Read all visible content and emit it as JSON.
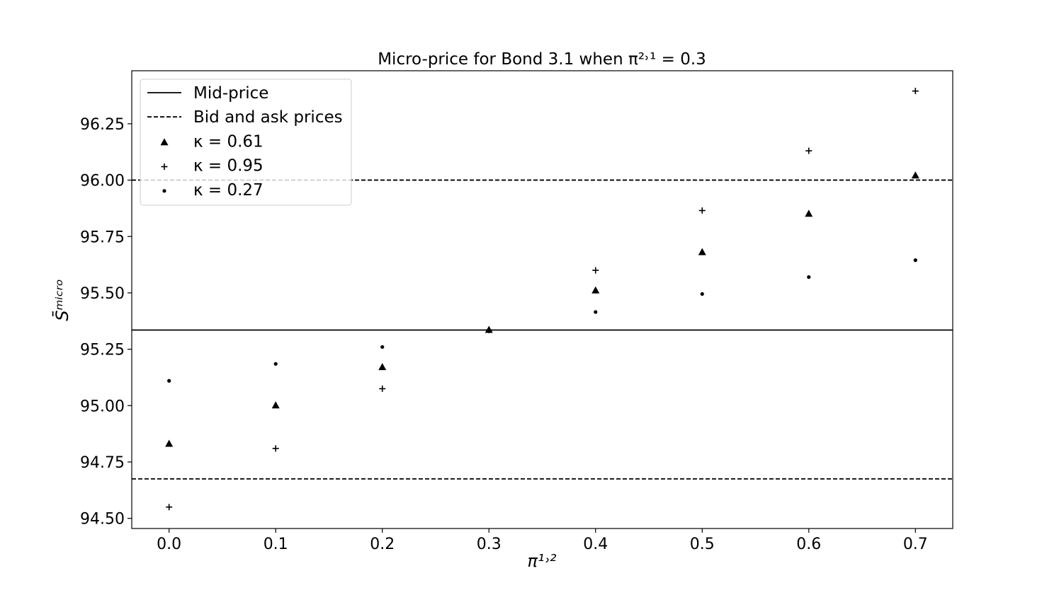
{
  "chart_data": {
    "type": "scatter",
    "title": "Micro-price for Bond 3.1 when π²˒¹ = 0.3",
    "xlabel": "π¹˒²",
    "ylabel": "S̄ᵐⁱᶜʳᵒ",
    "xlim": [
      -0.035,
      0.735
    ],
    "ylim": [
      94.455,
      96.485
    ],
    "x_ticks": [
      0.0,
      0.1,
      0.2,
      0.3,
      0.4,
      0.5,
      0.6,
      0.7
    ],
    "x_tick_labels": [
      "0.0",
      "0.1",
      "0.2",
      "0.3",
      "0.4",
      "0.5",
      "0.6",
      "0.7"
    ],
    "y_ticks": [
      94.5,
      94.75,
      95.0,
      95.25,
      95.5,
      95.75,
      96.0,
      96.25
    ],
    "y_tick_labels": [
      "94.50",
      "94.75",
      "95.00",
      "95.25",
      "95.50",
      "95.75",
      "96.00",
      "96.25"
    ],
    "grid": false,
    "legend_position": "top-left",
    "hlines": [
      {
        "name": "Mid-price",
        "y": 95.335,
        "style": "solid"
      },
      {
        "name": "Bid and ask prices",
        "y": 96.0,
        "style": "dashed"
      },
      {
        "name": "Bid and ask prices",
        "y": 94.675,
        "style": "dashed"
      }
    ],
    "series": [
      {
        "name": "κ = 0.61",
        "marker": "triangle",
        "x": [
          0.0,
          0.1,
          0.2,
          0.3,
          0.4,
          0.5,
          0.6,
          0.7
        ],
        "y": [
          94.83,
          95.0,
          95.17,
          95.335,
          95.51,
          95.68,
          95.85,
          96.02
        ]
      },
      {
        "name": "κ = 0.95",
        "marker": "plus",
        "x": [
          0.0,
          0.1,
          0.2,
          0.3,
          0.4,
          0.5,
          0.6,
          0.7
        ],
        "y": [
          94.55,
          94.81,
          95.075,
          95.335,
          95.6,
          95.865,
          96.13,
          96.395
        ]
      },
      {
        "name": "κ = 0.27",
        "marker": "dot",
        "x": [
          0.0,
          0.1,
          0.2,
          0.3,
          0.4,
          0.5,
          0.6,
          0.7
        ],
        "y": [
          95.11,
          95.185,
          95.26,
          95.335,
          95.415,
          95.495,
          95.57,
          95.645
        ]
      }
    ],
    "legend": [
      {
        "label": "Mid-price",
        "kind": "solid-line"
      },
      {
        "label": "Bid and ask prices",
        "kind": "dashed-line"
      },
      {
        "label": "κ = 0.61",
        "kind": "triangle"
      },
      {
        "label": "κ = 0.95",
        "kind": "plus"
      },
      {
        "label": "κ = 0.27",
        "kind": "dot"
      }
    ]
  }
}
